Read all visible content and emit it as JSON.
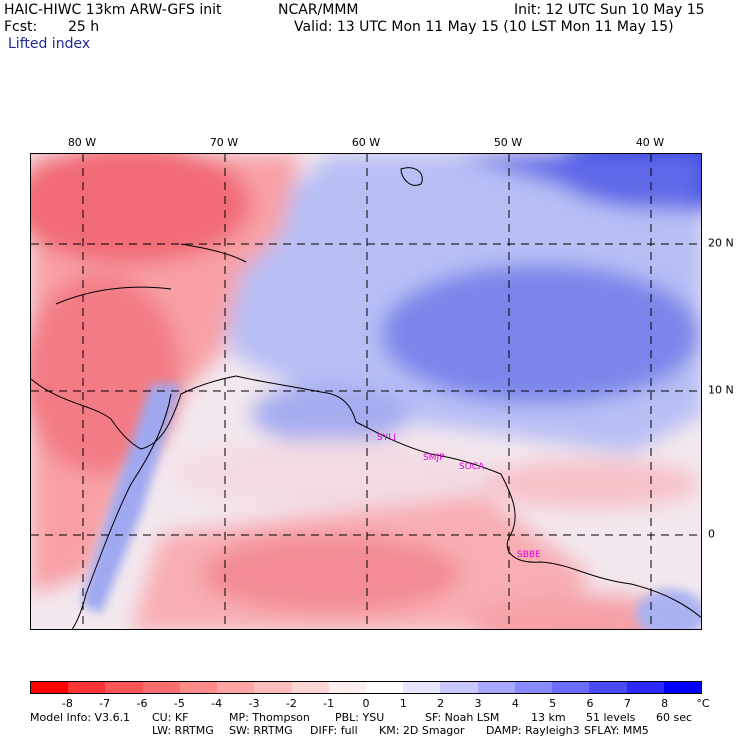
{
  "header": {
    "model": "HAIC-HIWC 13km ARW-GFS init",
    "org": "NCAR/MMM",
    "init": "Init: 12 UTC Sun 10 May 15",
    "fcst_label": "Fcst:",
    "fcst_value": "25 h",
    "valid": "Valid: 13 UTC Mon 11 May 15 (10 LST Mon 11 May 15)",
    "field": "Lifted index"
  },
  "map": {
    "lon_labels": [
      "80 W",
      "70 W",
      "60 W",
      "50 W",
      "40 W"
    ],
    "lat_labels": [
      "20 N",
      "10 N",
      "0"
    ],
    "stations": [
      "SYLI",
      "SMJP",
      "SOCA",
      "SBBE"
    ]
  },
  "colorbar": {
    "ticks": [
      "-8",
      "-7",
      "-6",
      "-5",
      "-4",
      "-3",
      "-2",
      "-1",
      "0",
      "1",
      "2",
      "3",
      "4",
      "5",
      "6",
      "7",
      "8"
    ],
    "unit": "°C",
    "colors": [
      "#ff0000",
      "#ff3535",
      "#ff5555",
      "#ff6e6e",
      "#ff8a8a",
      "#ffa5a5",
      "#ffbcbc",
      "#ffd6d6",
      "#ffeeee",
      "#ffffff",
      "#e6e6ff",
      "#c8c8ff",
      "#a8a8ff",
      "#8a8aff",
      "#6c6cff",
      "#4a4aff",
      "#2a2aff",
      "#0000ff"
    ]
  },
  "footer": {
    "line1": [
      "Model Info: V3.6.1",
      "CU: KF",
      "MP: Thompson",
      "PBL: YSU",
      "SF: Noah LSM",
      "13 km",
      "51 levels",
      "60 sec"
    ],
    "line2": [
      "LW: RRTMG",
      "SW: RRTMG",
      "DIFF: full",
      "KM: 2D Smagor",
      "DAMP: Rayleigh3",
      "SFLAY: MM5"
    ]
  }
}
